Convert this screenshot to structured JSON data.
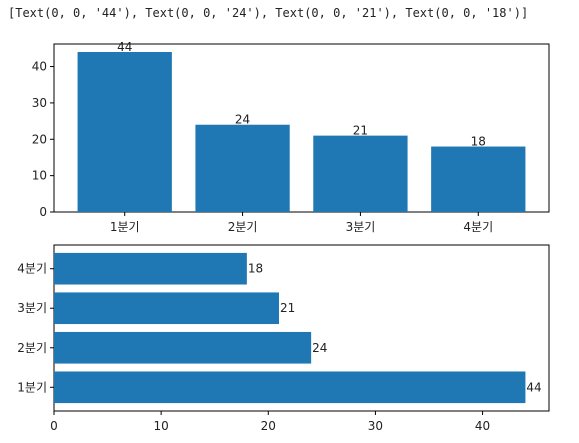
{
  "output_line": "[Text(0, 0, '44'), Text(0, 0, '24'), Text(0, 0, '21'), Text(0, 0, '18')]",
  "colors": {
    "bar": "#1f77b4",
    "axis": "#000000",
    "text": "#222222"
  },
  "chart_data": [
    {
      "type": "bar",
      "orientation": "vertical",
      "categories": [
        "1분기",
        "2분기",
        "3분기",
        "4분기"
      ],
      "values": [
        44,
        24,
        21,
        18
      ],
      "data_labels": [
        "44",
        "24",
        "21",
        "18"
      ],
      "ylim": [
        0,
        46.2
      ],
      "yticks": [
        0,
        10,
        20,
        30,
        40
      ],
      "grid": false
    },
    {
      "type": "bar",
      "orientation": "horizontal",
      "categories": [
        "1분기",
        "2분기",
        "3분기",
        "4분기"
      ],
      "values": [
        44,
        24,
        21,
        18
      ],
      "data_labels": [
        "44",
        "24",
        "21",
        "18"
      ],
      "xlim": [
        0,
        46.2
      ],
      "xticks": [
        0,
        10,
        20,
        30,
        40
      ],
      "grid": false
    }
  ]
}
